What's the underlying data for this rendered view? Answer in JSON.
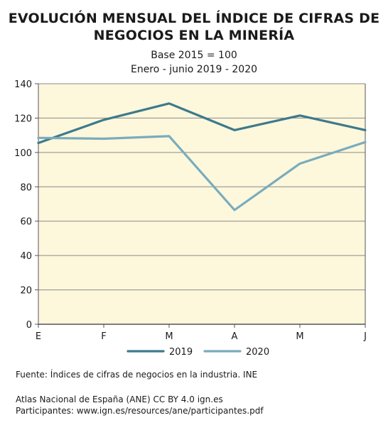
{
  "chart_data": {
    "type": "line",
    "title": [
      "EVOLUCIÓN MENSUAL DEL ÍNDICE DE CIFRAS DE",
      "NEGOCIOS EN LA MINERÍA"
    ],
    "subtitle": [
      "Base 2015 = 100",
      "Enero - junio 2019 - 2020"
    ],
    "categories": [
      "E",
      "F",
      "M",
      "A",
      "M",
      "J"
    ],
    "series": [
      {
        "name": "2019",
        "color": "#3d7a8c",
        "values": [
          105.5,
          119,
          128.5,
          113,
          121.5,
          113
        ]
      },
      {
        "name": "2020",
        "color": "#79acbd",
        "values": [
          108.5,
          108,
          109.5,
          66.5,
          93.5,
          106
        ]
      }
    ],
    "ylim": [
      0,
      140
    ],
    "yticks": [
      0,
      20,
      40,
      60,
      80,
      100,
      120,
      140
    ],
    "grid": true,
    "plot_background": "#fdf7dc",
    "legend_position": "bottom"
  },
  "footer": {
    "source": "Fuente: Índices de cifras de negocios en la industria. INE",
    "credits_1": "Atlas Nacional de España (ANE) CC BY 4.0 ign.es",
    "credits_2": "Participantes: www.ign.es/resources/ane/participantes.pdf"
  }
}
